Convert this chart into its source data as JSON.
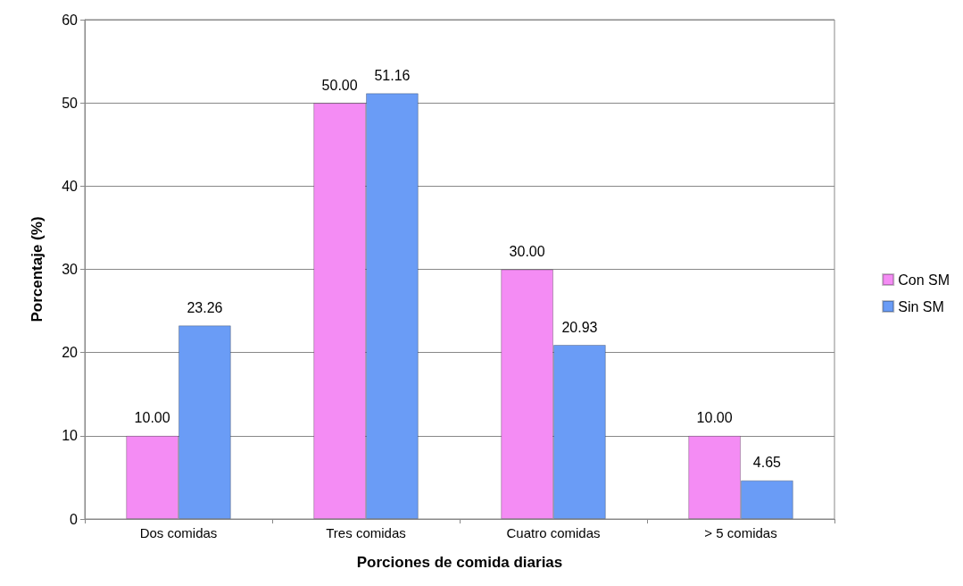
{
  "chart_data": {
    "type": "bar",
    "xlabel": "Porciones de comida diarias",
    "ylabel": "Porcentaje (%)",
    "categories": [
      "Dos comidas",
      "Tres comidas",
      "Cuatro comidas",
      "> 5 comidas"
    ],
    "series": [
      {
        "name": "Con SM",
        "color": "#f48cf4",
        "values": [
          10.0,
          50.0,
          30.0,
          10.0
        ],
        "value_labels": [
          "10.00",
          "50.00",
          "30.00",
          "10.00"
        ]
      },
      {
        "name": "Sin SM",
        "color": "#6a9cf6",
        "values": [
          23.26,
          51.16,
          20.93,
          4.65
        ],
        "value_labels": [
          "23.26",
          "51.16",
          "20.93",
          "4.65"
        ]
      }
    ],
    "ylim": [
      0,
      60
    ],
    "yticks": [
      0,
      10,
      20,
      30,
      40,
      50,
      60
    ],
    "grid": "y",
    "legend": "right"
  }
}
